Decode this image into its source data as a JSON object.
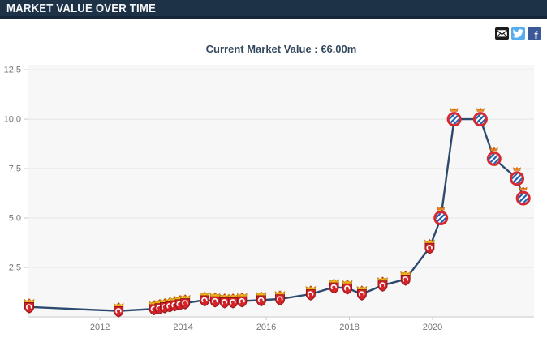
{
  "header": {
    "title": "MARKET VALUE OVER TIME"
  },
  "social": {
    "icons": [
      {
        "name": "email",
        "color": "#1c1c1c"
      },
      {
        "name": "twitter",
        "color": "#55acee"
      },
      {
        "name": "facebook",
        "color": "#3b5998",
        "label": "f"
      }
    ]
  },
  "chart": {
    "title": "Current Market Value : €6.00m"
  },
  "chart_data": {
    "type": "line",
    "title": "Current Market Value : €6.00m",
    "currency_unit": "€m",
    "current_market_value": "€6.00m",
    "xlim": [
      2010.28,
      2022.44
    ],
    "ylim": [
      0,
      12.75
    ],
    "y_ticks": [
      2.5,
      5,
      7.5,
      10,
      12.5
    ],
    "y_tick_labels": [
      "2,5",
      "5,0",
      "7,5",
      "10,0",
      "12,5"
    ],
    "x_tick_years": [
      2012,
      2014,
      2016,
      2018,
      2020
    ],
    "x_tick_labels": [
      "2012",
      "2014",
      "2016",
      "2018",
      "2020"
    ],
    "grid": true,
    "legend": "none",
    "colors": {
      "line": "#2b4a6d",
      "grid": "#e4e4e4",
      "plot_bg": "#f7f7f8",
      "axis": "#c9c9c9",
      "tick_label": "#757575",
      "title": "#35495e"
    },
    "marker_legend": {
      "shield": "red shield crest with gold crown (earlier club)",
      "circle": "red ring crest with blue-white diagonal stripes and crown (later club)"
    },
    "series": [
      {
        "name": "Market value (€m)",
        "points": [
          {
            "year": 2010.3,
            "value": 0.5,
            "club": "shield"
          },
          {
            "year": 2012.45,
            "value": 0.3,
            "club": "shield"
          },
          {
            "year": 2013.3,
            "value": 0.4,
            "club": "shield"
          },
          {
            "year": 2013.43,
            "value": 0.45,
            "club": "shield"
          },
          {
            "year": 2013.56,
            "value": 0.5,
            "club": "shield"
          },
          {
            "year": 2013.68,
            "value": 0.55,
            "club": "shield"
          },
          {
            "year": 2013.8,
            "value": 0.6,
            "club": "shield"
          },
          {
            "year": 2013.92,
            "value": 0.65,
            "club": "shield"
          },
          {
            "year": 2014.05,
            "value": 0.7,
            "club": "shield"
          },
          {
            "year": 2014.52,
            "value": 0.85,
            "club": "shield"
          },
          {
            "year": 2014.77,
            "value": 0.8,
            "club": "shield"
          },
          {
            "year": 2015.0,
            "value": 0.75,
            "club": "shield"
          },
          {
            "year": 2015.2,
            "value": 0.75,
            "club": "shield"
          },
          {
            "year": 2015.42,
            "value": 0.8,
            "club": "shield"
          },
          {
            "year": 2015.88,
            "value": 0.85,
            "club": "shield"
          },
          {
            "year": 2016.33,
            "value": 0.9,
            "club": "shield"
          },
          {
            "year": 2017.07,
            "value": 1.15,
            "club": "shield"
          },
          {
            "year": 2017.63,
            "value": 1.5,
            "club": "shield"
          },
          {
            "year": 2017.95,
            "value": 1.45,
            "club": "shield"
          },
          {
            "year": 2018.3,
            "value": 1.15,
            "club": "shield"
          },
          {
            "year": 2018.8,
            "value": 1.6,
            "club": "shield"
          },
          {
            "year": 2019.35,
            "value": 1.9,
            "club": "shield"
          },
          {
            "year": 2019.93,
            "value": 3.5,
            "club": "shield"
          },
          {
            "year": 2020.2,
            "value": 5.0,
            "club": "circle"
          },
          {
            "year": 2020.52,
            "value": 10.0,
            "club": "circle"
          },
          {
            "year": 2021.15,
            "value": 10.0,
            "club": "circle"
          },
          {
            "year": 2021.48,
            "value": 8.0,
            "club": "circle"
          },
          {
            "year": 2022.03,
            "value": 7.0,
            "club": "circle"
          },
          {
            "year": 2022.18,
            "value": 6.0,
            "club": "circle"
          }
        ]
      }
    ]
  }
}
